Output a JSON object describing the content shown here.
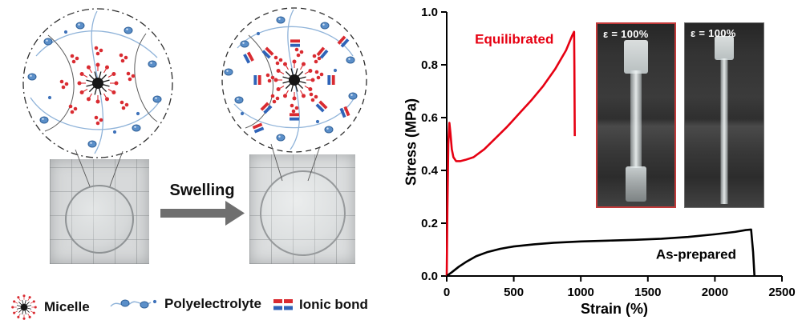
{
  "figure": {
    "swelling_label": "Swelling",
    "legend": {
      "micelle": "Micelle",
      "polyelectrolyte": "Polyelectrolyte",
      "ionic_bond": "Ionic bond"
    }
  },
  "chart_data": {
    "type": "line",
    "title": "",
    "xlabel": "Strain (%)",
    "ylabel": "Stress (MPa)",
    "xlim": [
      0,
      2500
    ],
    "ylim": [
      0,
      1.0
    ],
    "xticks": [
      0,
      500,
      1000,
      1500,
      2000,
      2500
    ],
    "yticks": [
      0,
      0.2,
      0.4,
      0.6,
      0.8,
      1.0
    ],
    "grid": false,
    "legend_position": "none",
    "series": [
      {
        "name": "Equilibrated",
        "color": "#e60012",
        "x": [
          0,
          5,
          12,
          20,
          28,
          38,
          50,
          70,
          100,
          140,
          200,
          280,
          360,
          450,
          540,
          630,
          720,
          810,
          890,
          935,
          950,
          952,
          955
        ],
        "y": [
          0,
          0.25,
          0.5,
          0.58,
          0.54,
          0.48,
          0.45,
          0.435,
          0.435,
          0.44,
          0.45,
          0.48,
          0.52,
          0.565,
          0.615,
          0.665,
          0.72,
          0.785,
          0.855,
          0.91,
          0.925,
          0.8,
          0.53
        ]
      },
      {
        "name": "As-prepared",
        "color": "#000000",
        "x": [
          0,
          40,
          90,
          150,
          220,
          300,
          400,
          500,
          650,
          800,
          1000,
          1200,
          1400,
          1600,
          1800,
          2000,
          2150,
          2230,
          2270,
          2285,
          2295
        ],
        "y": [
          0,
          0.015,
          0.035,
          0.055,
          0.075,
          0.09,
          0.103,
          0.112,
          0.12,
          0.126,
          0.131,
          0.134,
          0.137,
          0.141,
          0.148,
          0.158,
          0.167,
          0.174,
          0.176,
          0.09,
          0
        ]
      }
    ],
    "annotations": [
      {
        "text": "Equilibrated",
        "x": 210,
        "y": 0.88,
        "color": "#e60012",
        "anchor": "start"
      },
      {
        "text": "As-prepared",
        "x": 1560,
        "y": 0.065,
        "color": "#000000",
        "anchor": "start"
      }
    ],
    "insets": [
      {
        "label": "ε = 100%",
        "border_color": "#c23a3a",
        "name": "equilibrated-specimen"
      },
      {
        "label": "ε = 100%",
        "border_color": "#6f6f6f",
        "name": "as-prepared-specimen"
      }
    ]
  }
}
